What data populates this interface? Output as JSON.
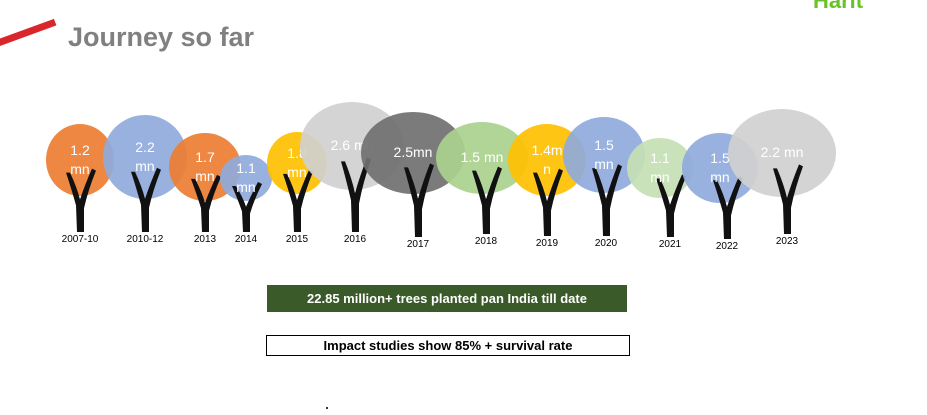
{
  "slide": {
    "title": "Journey so far",
    "logo_fragment": "Harit",
    "summary": "22.85 million+ trees planted pan India till date",
    "impact": "Impact studies show 85% + survival rate"
  },
  "trees": [
    {
      "year": "2007-10",
      "amount_lines": [
        "1.2",
        "mn"
      ],
      "color": "#ed7d31"
    },
    {
      "year": "2010-12",
      "amount_lines": [
        "2.2",
        "mn"
      ],
      "color": "#8faadc"
    },
    {
      "year": "2013",
      "amount_lines": [
        "1.7",
        "mn"
      ],
      "color": "#ed7d31"
    },
    {
      "year": "2014",
      "amount_lines": [
        "1.1",
        "mn"
      ],
      "color": "#8faadc"
    },
    {
      "year": "2015",
      "amount_lines": [
        "1.8",
        "mn"
      ],
      "color": "#ffc000"
    },
    {
      "year": "2016",
      "amount_lines": [
        "2.6 mn"
      ],
      "color": "#d0d0d0"
    },
    {
      "year": "2017",
      "amount_lines": [
        "2.5mn"
      ],
      "color": "#707070"
    },
    {
      "year": "2018",
      "amount_lines": [
        "1.5 mn"
      ],
      "color": "#a9d18e"
    },
    {
      "year": "2019",
      "amount_lines": [
        "1.4m",
        "n"
      ],
      "color": "#ffc000"
    },
    {
      "year": "2020",
      "amount_lines": [
        "1.5",
        "mn"
      ],
      "color": "#8faadc"
    },
    {
      "year": "2021",
      "amount_lines": [
        "1.1",
        "mn"
      ],
      "color": "#c5e0b4"
    },
    {
      "year": "2022",
      "amount_lines": [
        "1.5",
        "mn"
      ],
      "color": "#8faadc"
    },
    {
      "year": "2023",
      "amount_lines": [
        "2.2 mn"
      ],
      "color": "#d0d0d0"
    }
  ]
}
